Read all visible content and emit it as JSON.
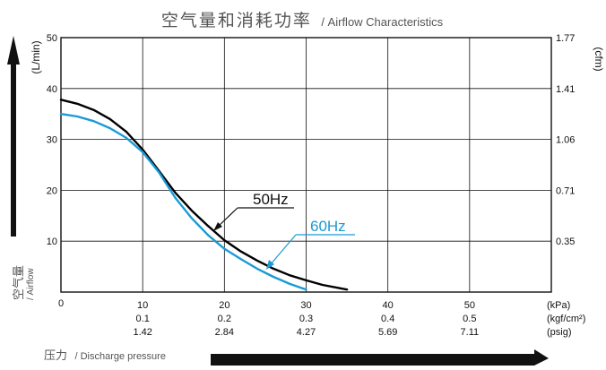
{
  "chart_data": {
    "type": "line",
    "title": {
      "main": "空气量和消耗功率",
      "sub": "/ Airflow Characteristics"
    },
    "xlabel": {
      "main": "压力",
      "sub": "/ Discharge pressure"
    },
    "ylabel": {
      "main": "空气量",
      "sub": "/ Airflow"
    },
    "y_unit_left": "(L/min)",
    "y_unit_right": "(cfm)",
    "x_units": [
      "(kPa)",
      "(kgf/cm²)",
      "(psig)"
    ],
    "xlim": [
      0,
      60
    ],
    "ylim": [
      0,
      50
    ],
    "x_ticks": [
      {
        "value": 10,
        "kpa": "10",
        "kgf": "0.1",
        "psig": "1.42"
      },
      {
        "value": 20,
        "kpa": "20",
        "kgf": "0.2",
        "psig": "2.84"
      },
      {
        "value": 30,
        "kpa": "30",
        "kgf": "0.3",
        "psig": "4.27"
      },
      {
        "value": 40,
        "kpa": "40",
        "kgf": "0.4",
        "psig": "5.69"
      },
      {
        "value": 50,
        "kpa": "50",
        "kgf": "0.5",
        "psig": "7.11"
      }
    ],
    "origin_label": "0",
    "y_ticks_left": [
      {
        "value": 10,
        "label": "10"
      },
      {
        "value": 20,
        "label": "20"
      },
      {
        "value": 30,
        "label": "30"
      },
      {
        "value": 40,
        "label": "40"
      },
      {
        "value": 50,
        "label": "50"
      }
    ],
    "y_ticks_right": [
      {
        "value": 10,
        "label": "0.35"
      },
      {
        "value": 20,
        "label": "0.71"
      },
      {
        "value": 30,
        "label": "1.06"
      },
      {
        "value": 40,
        "label": "1.41"
      },
      {
        "value": 50,
        "label": "1.77"
      }
    ],
    "series": [
      {
        "name": "50Hz",
        "color": "#000000",
        "x": [
          0,
          2,
          4,
          6,
          8,
          10,
          12,
          14,
          16,
          18,
          20,
          22,
          24,
          26,
          28,
          30,
          32,
          35
        ],
        "y": [
          37.8,
          37.0,
          35.8,
          34.0,
          31.5,
          28.0,
          23.8,
          19.5,
          16.0,
          13.0,
          10.2,
          8.0,
          6.2,
          4.6,
          3.3,
          2.3,
          1.4,
          0.5
        ]
      },
      {
        "name": "60Hz",
        "color": "#1a9ad6",
        "x": [
          0,
          2,
          4,
          6,
          8,
          10,
          12,
          14,
          16,
          18,
          20,
          22,
          24,
          26,
          28,
          30
        ],
        "y": [
          35.0,
          34.5,
          33.6,
          32.2,
          30.3,
          27.5,
          23.5,
          18.5,
          14.5,
          11.2,
          8.5,
          6.5,
          4.6,
          3.0,
          1.6,
          0.5
        ]
      }
    ],
    "annotations": [
      {
        "series": "50Hz",
        "text": "50Hz"
      },
      {
        "series": "60Hz",
        "text": "60Hz"
      }
    ],
    "grid": true
  }
}
